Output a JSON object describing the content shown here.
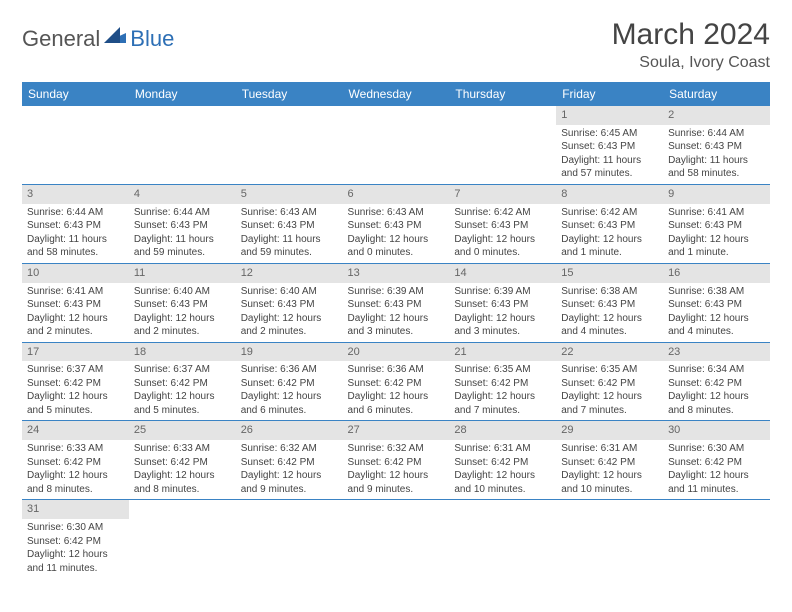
{
  "logo": {
    "general": "General",
    "blue": "Blue"
  },
  "title": "March 2024",
  "location": "Soula, Ivory Coast",
  "colors": {
    "header_bg": "#3a83c4",
    "header_text": "#ffffff",
    "daynum_bg": "#e4e4e4",
    "border": "#3a83c4",
    "text": "#444444",
    "logo_blue": "#2d6fb5"
  },
  "weekdays": [
    "Sunday",
    "Monday",
    "Tuesday",
    "Wednesday",
    "Thursday",
    "Friday",
    "Saturday"
  ],
  "weeks": [
    [
      {
        "n": "",
        "sr": "",
        "ss": "",
        "dl": ""
      },
      {
        "n": "",
        "sr": "",
        "ss": "",
        "dl": ""
      },
      {
        "n": "",
        "sr": "",
        "ss": "",
        "dl": ""
      },
      {
        "n": "",
        "sr": "",
        "ss": "",
        "dl": ""
      },
      {
        "n": "",
        "sr": "",
        "ss": "",
        "dl": ""
      },
      {
        "n": "1",
        "sr": "Sunrise: 6:45 AM",
        "ss": "Sunset: 6:43 PM",
        "dl": "Daylight: 11 hours and 57 minutes."
      },
      {
        "n": "2",
        "sr": "Sunrise: 6:44 AM",
        "ss": "Sunset: 6:43 PM",
        "dl": "Daylight: 11 hours and 58 minutes."
      }
    ],
    [
      {
        "n": "3",
        "sr": "Sunrise: 6:44 AM",
        "ss": "Sunset: 6:43 PM",
        "dl": "Daylight: 11 hours and 58 minutes."
      },
      {
        "n": "4",
        "sr": "Sunrise: 6:44 AM",
        "ss": "Sunset: 6:43 PM",
        "dl": "Daylight: 11 hours and 59 minutes."
      },
      {
        "n": "5",
        "sr": "Sunrise: 6:43 AM",
        "ss": "Sunset: 6:43 PM",
        "dl": "Daylight: 11 hours and 59 minutes."
      },
      {
        "n": "6",
        "sr": "Sunrise: 6:43 AM",
        "ss": "Sunset: 6:43 PM",
        "dl": "Daylight: 12 hours and 0 minutes."
      },
      {
        "n": "7",
        "sr": "Sunrise: 6:42 AM",
        "ss": "Sunset: 6:43 PM",
        "dl": "Daylight: 12 hours and 0 minutes."
      },
      {
        "n": "8",
        "sr": "Sunrise: 6:42 AM",
        "ss": "Sunset: 6:43 PM",
        "dl": "Daylight: 12 hours and 1 minute."
      },
      {
        "n": "9",
        "sr": "Sunrise: 6:41 AM",
        "ss": "Sunset: 6:43 PM",
        "dl": "Daylight: 12 hours and 1 minute."
      }
    ],
    [
      {
        "n": "10",
        "sr": "Sunrise: 6:41 AM",
        "ss": "Sunset: 6:43 PM",
        "dl": "Daylight: 12 hours and 2 minutes."
      },
      {
        "n": "11",
        "sr": "Sunrise: 6:40 AM",
        "ss": "Sunset: 6:43 PM",
        "dl": "Daylight: 12 hours and 2 minutes."
      },
      {
        "n": "12",
        "sr": "Sunrise: 6:40 AM",
        "ss": "Sunset: 6:43 PM",
        "dl": "Daylight: 12 hours and 2 minutes."
      },
      {
        "n": "13",
        "sr": "Sunrise: 6:39 AM",
        "ss": "Sunset: 6:43 PM",
        "dl": "Daylight: 12 hours and 3 minutes."
      },
      {
        "n": "14",
        "sr": "Sunrise: 6:39 AM",
        "ss": "Sunset: 6:43 PM",
        "dl": "Daylight: 12 hours and 3 minutes."
      },
      {
        "n": "15",
        "sr": "Sunrise: 6:38 AM",
        "ss": "Sunset: 6:43 PM",
        "dl": "Daylight: 12 hours and 4 minutes."
      },
      {
        "n": "16",
        "sr": "Sunrise: 6:38 AM",
        "ss": "Sunset: 6:43 PM",
        "dl": "Daylight: 12 hours and 4 minutes."
      }
    ],
    [
      {
        "n": "17",
        "sr": "Sunrise: 6:37 AM",
        "ss": "Sunset: 6:42 PM",
        "dl": "Daylight: 12 hours and 5 minutes."
      },
      {
        "n": "18",
        "sr": "Sunrise: 6:37 AM",
        "ss": "Sunset: 6:42 PM",
        "dl": "Daylight: 12 hours and 5 minutes."
      },
      {
        "n": "19",
        "sr": "Sunrise: 6:36 AM",
        "ss": "Sunset: 6:42 PM",
        "dl": "Daylight: 12 hours and 6 minutes."
      },
      {
        "n": "20",
        "sr": "Sunrise: 6:36 AM",
        "ss": "Sunset: 6:42 PM",
        "dl": "Daylight: 12 hours and 6 minutes."
      },
      {
        "n": "21",
        "sr": "Sunrise: 6:35 AM",
        "ss": "Sunset: 6:42 PM",
        "dl": "Daylight: 12 hours and 7 minutes."
      },
      {
        "n": "22",
        "sr": "Sunrise: 6:35 AM",
        "ss": "Sunset: 6:42 PM",
        "dl": "Daylight: 12 hours and 7 minutes."
      },
      {
        "n": "23",
        "sr": "Sunrise: 6:34 AM",
        "ss": "Sunset: 6:42 PM",
        "dl": "Daylight: 12 hours and 8 minutes."
      }
    ],
    [
      {
        "n": "24",
        "sr": "Sunrise: 6:33 AM",
        "ss": "Sunset: 6:42 PM",
        "dl": "Daylight: 12 hours and 8 minutes."
      },
      {
        "n": "25",
        "sr": "Sunrise: 6:33 AM",
        "ss": "Sunset: 6:42 PM",
        "dl": "Daylight: 12 hours and 8 minutes."
      },
      {
        "n": "26",
        "sr": "Sunrise: 6:32 AM",
        "ss": "Sunset: 6:42 PM",
        "dl": "Daylight: 12 hours and 9 minutes."
      },
      {
        "n": "27",
        "sr": "Sunrise: 6:32 AM",
        "ss": "Sunset: 6:42 PM",
        "dl": "Daylight: 12 hours and 9 minutes."
      },
      {
        "n": "28",
        "sr": "Sunrise: 6:31 AM",
        "ss": "Sunset: 6:42 PM",
        "dl": "Daylight: 12 hours and 10 minutes."
      },
      {
        "n": "29",
        "sr": "Sunrise: 6:31 AM",
        "ss": "Sunset: 6:42 PM",
        "dl": "Daylight: 12 hours and 10 minutes."
      },
      {
        "n": "30",
        "sr": "Sunrise: 6:30 AM",
        "ss": "Sunset: 6:42 PM",
        "dl": "Daylight: 12 hours and 11 minutes."
      }
    ],
    [
      {
        "n": "31",
        "sr": "Sunrise: 6:30 AM",
        "ss": "Sunset: 6:42 PM",
        "dl": "Daylight: 12 hours and 11 minutes."
      },
      {
        "n": "",
        "sr": "",
        "ss": "",
        "dl": ""
      },
      {
        "n": "",
        "sr": "",
        "ss": "",
        "dl": ""
      },
      {
        "n": "",
        "sr": "",
        "ss": "",
        "dl": ""
      },
      {
        "n": "",
        "sr": "",
        "ss": "",
        "dl": ""
      },
      {
        "n": "",
        "sr": "",
        "ss": "",
        "dl": ""
      },
      {
        "n": "",
        "sr": "",
        "ss": "",
        "dl": ""
      }
    ]
  ]
}
